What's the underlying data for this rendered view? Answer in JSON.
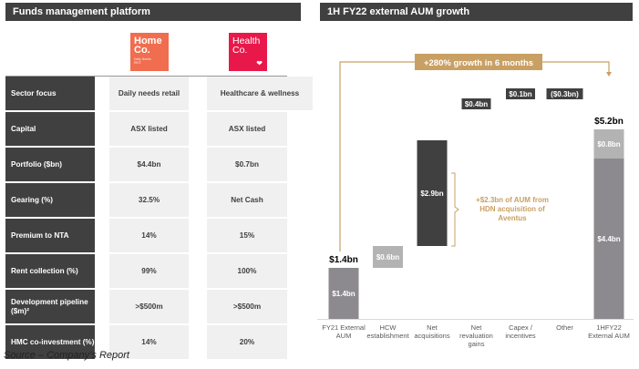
{
  "left_panel": {
    "title": "Funds management platform",
    "logos": [
      {
        "name": "HomeCo.",
        "line1": "Home",
        "line2": "Co.",
        "subtitle1": "Daily Needs",
        "subtitle2": "REIT",
        "color": "#f06d4f"
      },
      {
        "name": "HealthCo.",
        "line1": "Health",
        "line2": "Co.",
        "icon": "heart-check-icon",
        "color": "#e8194a"
      }
    ],
    "rows": [
      {
        "label": "Sector focus",
        "home": "Daily needs retail",
        "health": "Healthcare & wellness"
      },
      {
        "label": "Capital",
        "home": "ASX listed",
        "health": "ASX listed"
      },
      {
        "label": "Portfolio ($bn)",
        "home": "$4.4bn",
        "health": "$0.7bn"
      },
      {
        "label": "Gearing (%)",
        "home": "32.5%",
        "health": "Net Cash"
      },
      {
        "label": "Premium to NTA",
        "home": "14%",
        "health": "15%"
      },
      {
        "label": "Rent collection (%)",
        "home": "99%",
        "health": "100%"
      },
      {
        "label": "Development pipeline ($m)²",
        "home": ">$500m",
        "health": ">$500m"
      },
      {
        "label": "HMC co-investment (%)",
        "home": "14%",
        "health": "20%"
      }
    ]
  },
  "source": "Source – Company’s Report",
  "chart_data": {
    "type": "bar",
    "subtype": "waterfall",
    "title": "1H FY22 external AUM growth",
    "xlabel": "",
    "ylabel": "",
    "unit": "$bn",
    "categories": [
      "FY21 External AUM",
      "HCW establishment",
      "Net acquisitions",
      "Net revaluation gains",
      "Capex / incentives",
      "Other",
      "1HFY22 External AUM"
    ],
    "values": [
      1.4,
      0.6,
      2.9,
      0.4,
      0.1,
      -0.3,
      5.2
    ],
    "labels": [
      "$1.4bn",
      "$0.6bn",
      "$2.9bn",
      "$0.4bn",
      "$0.1bn",
      "($0.3bn)",
      "$5.2bn"
    ],
    "totals": {
      "start": "$1.4bn",
      "end": "$5.2bn"
    },
    "end_breakdown": [
      {
        "value": 4.4,
        "label": "$4.4bn",
        "color": "#8c8a8e"
      },
      {
        "value": 0.8,
        "label": "$0.8bn",
        "color": "#b3b3b3"
      }
    ],
    "colors": {
      "total": "#8c8a8e",
      "hcw": "#b3b3b3",
      "dark": "#404041",
      "accent": "#c9a063"
    },
    "annotations": {
      "growth": "+280% growth in 6 months",
      "bracket_lines": [
        "+$2.3bn of AUM from",
        "HDN acquisition of",
        "Aventus"
      ]
    },
    "grid": false,
    "legend": "none",
    "ylim": [
      0,
      5.2
    ]
  }
}
